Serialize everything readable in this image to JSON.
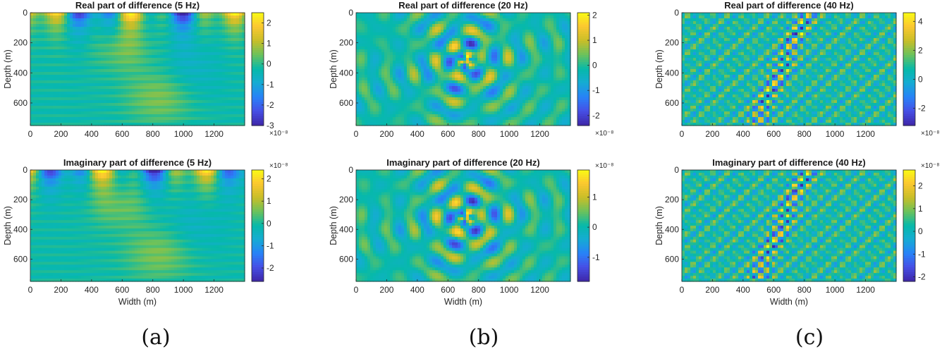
{
  "panel_labels": [
    "(a)",
    "(b)",
    "(c)"
  ],
  "chart_data": [
    {
      "type": "heatmap",
      "title": "Real part of difference (5 Hz)",
      "xlabel": "",
      "ylabel": "Depth (m)",
      "xlim": [
        0,
        1400
      ],
      "ylim": [
        750,
        0
      ],
      "xticks": [
        0,
        200,
        400,
        600,
        800,
        1000,
        1200
      ],
      "yticks": [
        0,
        200,
        400,
        600
      ],
      "colorbar": {
        "range": [
          -3,
          2.5
        ],
        "ticks": [
          -3,
          -2,
          -1,
          0,
          1,
          2
        ],
        "exponent": "×10⁻⁸"
      },
      "pattern": "layered",
      "seed": 3
    },
    {
      "type": "heatmap",
      "title": "Real part of difference (20 Hz)",
      "xlabel": "",
      "ylabel": "Depth (m)",
      "xlim": [
        0,
        1400
      ],
      "ylim": [
        750,
        0
      ],
      "xticks": [
        0,
        200,
        400,
        600,
        800,
        1000,
        1200
      ],
      "yticks": [
        0,
        200,
        400,
        600
      ],
      "colorbar": {
        "range": [
          -2.4,
          2.1
        ],
        "ticks": [
          -2,
          -1,
          0,
          1,
          2
        ],
        "exponent": "×10⁻⁸"
      },
      "pattern": "wave",
      "seed": 7
    },
    {
      "type": "heatmap",
      "title": "Real part of difference (40 Hz)",
      "xlabel": "",
      "ylabel": "Depth (m)",
      "xlim": [
        0,
        1400
      ],
      "ylim": [
        750,
        0
      ],
      "xticks": [
        0,
        200,
        400,
        600,
        800,
        1000,
        1200
      ],
      "yticks": [
        0,
        200,
        400,
        600
      ],
      "colorbar": {
        "range": [
          -3.2,
          4.6
        ],
        "ticks": [
          -2,
          0,
          2,
          4
        ],
        "exponent": "×10⁻⁸"
      },
      "pattern": "fine",
      "seed": 11
    },
    {
      "type": "heatmap",
      "title": "Imaginary part of difference (5 Hz)",
      "xlabel": "Width (m)",
      "ylabel": "Depth (m)",
      "xlim": [
        0,
        1400
      ],
      "ylim": [
        750,
        0
      ],
      "xticks": [
        0,
        200,
        400,
        600,
        800,
        1000,
        1200
      ],
      "yticks": [
        0,
        200,
        400,
        600
      ],
      "colorbar": {
        "range": [
          -2.6,
          2.4
        ],
        "ticks": [
          -2,
          -1,
          0,
          1,
          2
        ],
        "exponent": "×10⁻⁸"
      },
      "pattern": "layered",
      "seed": 5
    },
    {
      "type": "heatmap",
      "title": "Imaginary part of difference (20 Hz)",
      "xlabel": "Width (m)",
      "ylabel": "Depth (m)",
      "xlim": [
        0,
        1400
      ],
      "ylim": [
        750,
        0
      ],
      "xticks": [
        0,
        200,
        400,
        600,
        800,
        1000,
        1200
      ],
      "yticks": [
        0,
        200,
        400,
        600
      ],
      "colorbar": {
        "range": [
          -1.8,
          1.9
        ],
        "ticks": [
          -1,
          0,
          1
        ],
        "exponent": "×10⁻⁸"
      },
      "pattern": "wave",
      "seed": 13
    },
    {
      "type": "heatmap",
      "title": "Imaginary part of difference (40 Hz)",
      "xlabel": "Width (m)",
      "ylabel": "Depth (m)",
      "xlim": [
        0,
        1400
      ],
      "ylim": [
        750,
        0
      ],
      "xticks": [
        0,
        200,
        400,
        600,
        800,
        1000,
        1200
      ],
      "yticks": [
        0,
        200,
        400,
        600
      ],
      "colorbar": {
        "range": [
          -2.2,
          2.7
        ],
        "ticks": [
          -2,
          -1,
          0,
          1,
          2
        ],
        "exponent": "×10⁻⁸"
      },
      "pattern": "fine",
      "seed": 17
    }
  ]
}
